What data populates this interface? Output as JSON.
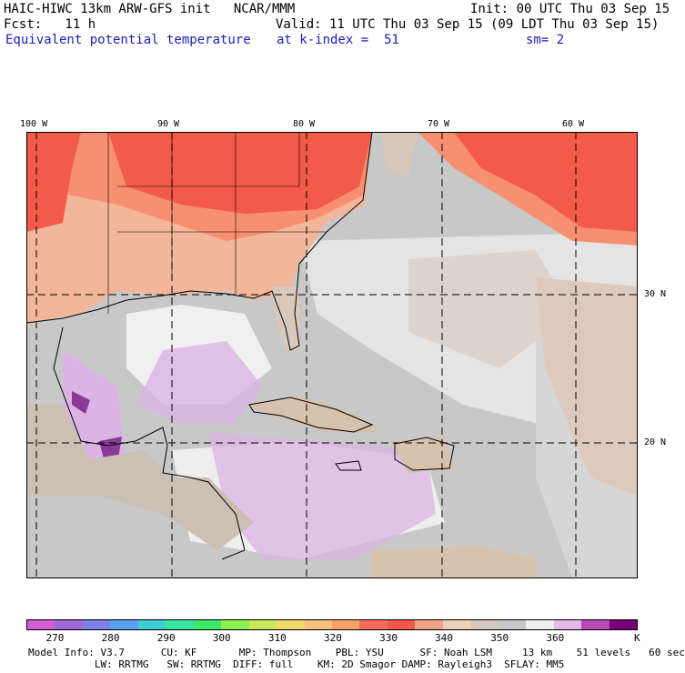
{
  "header": {
    "left_line1": "HAIC-HIWC 13km ARW-GFS init   NCAR/MMM",
    "left_line2": "Fcst:   11 h",
    "left_line3": "Equivalent potential temperature",
    "right_line1": "Init: 00 UTC Thu 03 Sep 15",
    "right_line2": "Valid: 11 UTC Thu 03 Sep 15 (09 LDT Thu 03 Sep 15)",
    "right_line3_a": "at k-index =  51",
    "right_line3_b": "sm= 2"
  },
  "map": {
    "lon_labels": [
      "100 W",
      "90 W",
      "80 W",
      "70 W",
      "60 W"
    ],
    "lat_labels": [
      "30 N",
      "20 N"
    ],
    "colors": {
      "warm_dark": "#f25a4a",
      "warm_mid": "#f78f70",
      "warm_light": "#f2b79a",
      "tan": "#dfc7b4",
      "gray": "#c8c8c8",
      "light_gray": "#dedede",
      "white": "#f4f4f4",
      "lavender": "#dcb4e4",
      "purple": "#8a3a96"
    }
  },
  "colorbar": {
    "colors": [
      "#d35fd3",
      "#a06ad8",
      "#7f7fe8",
      "#5aa0ee",
      "#3fcfd3",
      "#36e6a0",
      "#3ee96a",
      "#8df054",
      "#cbe85a",
      "#f0d86a",
      "#f7c080",
      "#f7a069",
      "#f76c5a",
      "#f2574a",
      "#f0a58a",
      "#eed0b8",
      "#d8c8bc",
      "#c8c8c8",
      "#eeeeee",
      "#e5b8ea",
      "#b84ab8",
      "#7a007a"
    ],
    "labels": [
      "270",
      "280",
      "290",
      "300",
      "310",
      "320",
      "330",
      "340",
      "350",
      "360"
    ],
    "unit": "K"
  },
  "footer": {
    "line1": "Model Info: V3.7      CU: KF       MP: Thompson    PBL: YSU      SF: Noah LSM     13 km    51 levels   60 sec",
    "line2": "           LW: RRTMG   SW: RRTMG  DIFF: full    KM: 2D Smagor DAMP: Rayleigh3  SFLAY: MM5"
  }
}
